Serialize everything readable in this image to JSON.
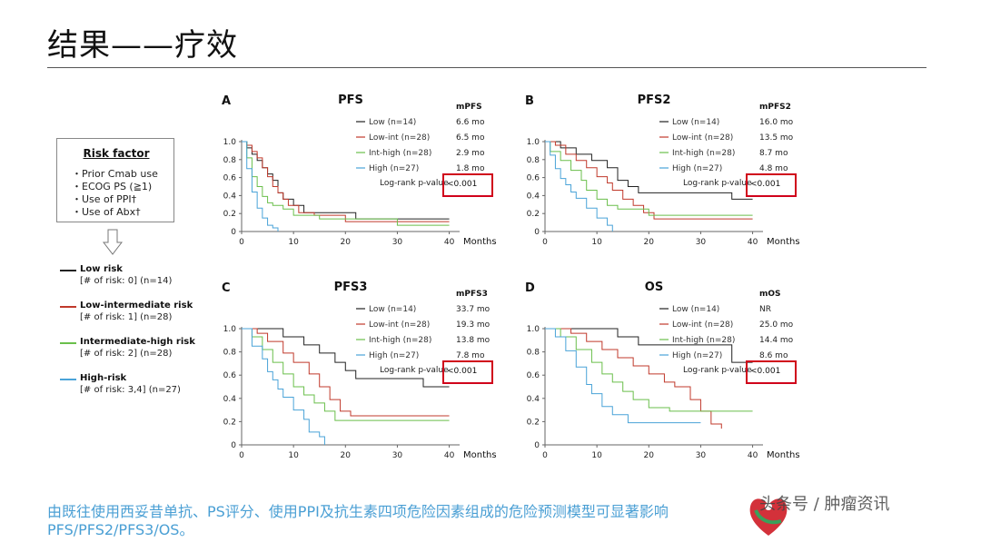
{
  "title": "结果——疗效",
  "risk_factor": {
    "title": "Risk factor",
    "items": [
      "・Prior Cmab use",
      "・ECOG PS (≧1)",
      "・Use of PPI†",
      "・Use of Abx†"
    ]
  },
  "groups": [
    {
      "name": "Low risk",
      "detail": "[# of risk: 0] (n=14)",
      "color": "#222222"
    },
    {
      "name": "Low-intermediate risk",
      "detail": "[# of risk: 1] (n=28)",
      "color": "#c0392b"
    },
    {
      "name": "Intermediate-high risk",
      "detail": "[# of risk: 2] (n=28)",
      "color": "#6abf4b"
    },
    {
      "name": "High-risk",
      "detail": "[# of risk: 3,4] (n=27)",
      "color": "#4aa3d8"
    }
  ],
  "footer": "由既往使用西妥昔单抗、PS评分、使用PPI及抗生素四项危险因素组成的危险预测模型可显著影响PFS/PFS2/PFS3/OS。",
  "watermark": "头条号 / 肿瘤资讯",
  "chart_data": [
    {
      "type": "line",
      "panel": "A",
      "title": "PFS",
      "xlabel": "Months",
      "ylabel": "",
      "xlim": [
        0,
        42
      ],
      "ylim": [
        0,
        1.0
      ],
      "xticks": [
        0,
        10,
        20,
        30,
        40
      ],
      "yticks": [
        "0",
        "0.2",
        "0.4",
        "0.6",
        "0.8",
        "1.0"
      ],
      "median_header": "mPFS",
      "logrank": "Log-rank p-value",
      "pvalue": "<0.001",
      "series": [
        {
          "name": "Low (n=14)",
          "median": "6.6 mo",
          "color": "#222222",
          "points": [
            [
              0,
              1.0
            ],
            [
              1,
              0.93
            ],
            [
              2,
              0.86
            ],
            [
              3,
              0.79
            ],
            [
              4,
              0.71
            ],
            [
              5,
              0.64
            ],
            [
              6,
              0.57
            ],
            [
              7,
              0.43
            ],
            [
              8,
              0.36
            ],
            [
              10,
              0.29
            ],
            [
              12,
              0.21
            ],
            [
              14,
              0.21
            ],
            [
              22,
              0.14
            ],
            [
              40,
              0.14
            ]
          ]
        },
        {
          "name": "Low-int (n=28)",
          "median": "6.5 mo",
          "color": "#c0392b",
          "points": [
            [
              0,
              1.0
            ],
            [
              1,
              0.96
            ],
            [
              2,
              0.89
            ],
            [
              3,
              0.82
            ],
            [
              4,
              0.71
            ],
            [
              5,
              0.61
            ],
            [
              6,
              0.5
            ],
            [
              7,
              0.43
            ],
            [
              8,
              0.36
            ],
            [
              9,
              0.29
            ],
            [
              11,
              0.21
            ],
            [
              14,
              0.18
            ],
            [
              20,
              0.11
            ],
            [
              40,
              0.11
            ]
          ]
        },
        {
          "name": "Int-high (n=28)",
          "median": "2.9 mo",
          "color": "#6abf4b",
          "points": [
            [
              0,
              1.0
            ],
            [
              1,
              0.82
            ],
            [
              2,
              0.61
            ],
            [
              3,
              0.5
            ],
            [
              4,
              0.39
            ],
            [
              5,
              0.32
            ],
            [
              6,
              0.29
            ],
            [
              8,
              0.25
            ],
            [
              10,
              0.18
            ],
            [
              15,
              0.14
            ],
            [
              30,
              0.07
            ],
            [
              40,
              0.07
            ]
          ]
        },
        {
          "name": "High (n=27)",
          "median": "1.8 mo",
          "color": "#4aa3d8",
          "points": [
            [
              0,
              1.0
            ],
            [
              1,
              0.7
            ],
            [
              2,
              0.44
            ],
            [
              3,
              0.26
            ],
            [
              4,
              0.15
            ],
            [
              5,
              0.07
            ],
            [
              6,
              0.04
            ],
            [
              7,
              0.0
            ]
          ]
        }
      ]
    },
    {
      "type": "line",
      "panel": "B",
      "title": "PFS2",
      "xlabel": "Months",
      "ylabel": "",
      "xlim": [
        0,
        42
      ],
      "ylim": [
        0,
        1.0
      ],
      "xticks": [
        0,
        10,
        20,
        30,
        40
      ],
      "yticks": [
        "0",
        "0.2",
        "0.4",
        "0.6",
        "0.8",
        "1.0"
      ],
      "median_header": "mPFS2",
      "logrank": "Log-rank p-value",
      "pvalue": "<0.001",
      "series": [
        {
          "name": "Low (n=14)",
          "median": "16.0 mo",
          "color": "#222222",
          "points": [
            [
              0,
              1.0
            ],
            [
              3,
              0.93
            ],
            [
              6,
              0.86
            ],
            [
              9,
              0.79
            ],
            [
              12,
              0.71
            ],
            [
              14,
              0.57
            ],
            [
              16,
              0.5
            ],
            [
              18,
              0.43
            ],
            [
              34,
              0.43
            ],
            [
              36,
              0.36
            ],
            [
              40,
              0.36
            ]
          ]
        },
        {
          "name": "Low-int (n=28)",
          "median": "13.5 mo",
          "color": "#c0392b",
          "points": [
            [
              0,
              1.0
            ],
            [
              2,
              0.96
            ],
            [
              4,
              0.86
            ],
            [
              6,
              0.79
            ],
            [
              8,
              0.71
            ],
            [
              10,
              0.61
            ],
            [
              12,
              0.54
            ],
            [
              13,
              0.46
            ],
            [
              15,
              0.36
            ],
            [
              17,
              0.29
            ],
            [
              19,
              0.21
            ],
            [
              21,
              0.14
            ],
            [
              40,
              0.14
            ]
          ]
        },
        {
          "name": "Int-high (n=28)",
          "median": "8.7 mo",
          "color": "#6abf4b",
          "points": [
            [
              0,
              1.0
            ],
            [
              1,
              0.89
            ],
            [
              3,
              0.79
            ],
            [
              5,
              0.68
            ],
            [
              7,
              0.57
            ],
            [
              8,
              0.46
            ],
            [
              10,
              0.36
            ],
            [
              12,
              0.29
            ],
            [
              14,
              0.25
            ],
            [
              20,
              0.18
            ],
            [
              40,
              0.18
            ]
          ]
        },
        {
          "name": "High (n=27)",
          "median": "4.8 mo",
          "color": "#4aa3d8",
          "points": [
            [
              0,
              1.0
            ],
            [
              1,
              0.85
            ],
            [
              2,
              0.7
            ],
            [
              3,
              0.59
            ],
            [
              4,
              0.52
            ],
            [
              5,
              0.44
            ],
            [
              6,
              0.37
            ],
            [
              8,
              0.26
            ],
            [
              10,
              0.15
            ],
            [
              12,
              0.07
            ],
            [
              13,
              0.0
            ]
          ]
        }
      ]
    },
    {
      "type": "line",
      "panel": "C",
      "title": "PFS3",
      "xlabel": "Months",
      "ylabel": "",
      "xlim": [
        0,
        42
      ],
      "ylim": [
        0,
        1.0
      ],
      "xticks": [
        0,
        10,
        20,
        30,
        40
      ],
      "yticks": [
        "0",
        "0.2",
        "0.4",
        "0.6",
        "0.8",
        "1.0"
      ],
      "median_header": "mPFS3",
      "logrank": "Log-rank p-value",
      "pvalue": "<0.001",
      "series": [
        {
          "name": "Low (n=14)",
          "median": "33.7 mo",
          "color": "#222222",
          "points": [
            [
              0,
              1.0
            ],
            [
              6,
              1.0
            ],
            [
              8,
              0.93
            ],
            [
              12,
              0.86
            ],
            [
              15,
              0.79
            ],
            [
              18,
              0.71
            ],
            [
              20,
              0.64
            ],
            [
              22,
              0.57
            ],
            [
              34,
              0.57
            ],
            [
              35,
              0.5
            ],
            [
              40,
              0.5
            ]
          ]
        },
        {
          "name": "Low-int (n=28)",
          "median": "19.3 mo",
          "color": "#c0392b",
          "points": [
            [
              0,
              1.0
            ],
            [
              3,
              0.96
            ],
            [
              5,
              0.89
            ],
            [
              8,
              0.79
            ],
            [
              10,
              0.71
            ],
            [
              13,
              0.61
            ],
            [
              15,
              0.5
            ],
            [
              17,
              0.39
            ],
            [
              19,
              0.29
            ],
            [
              21,
              0.25
            ],
            [
              40,
              0.25
            ]
          ]
        },
        {
          "name": "Int-high (n=28)",
          "median": "13.8 mo",
          "color": "#6abf4b",
          "points": [
            [
              0,
              1.0
            ],
            [
              2,
              0.93
            ],
            [
              4,
              0.82
            ],
            [
              6,
              0.71
            ],
            [
              8,
              0.61
            ],
            [
              10,
              0.5
            ],
            [
              12,
              0.43
            ],
            [
              14,
              0.36
            ],
            [
              16,
              0.29
            ],
            [
              18,
              0.21
            ],
            [
              40,
              0.21
            ]
          ]
        },
        {
          "name": "High (n=27)",
          "median": "7.8 mo",
          "color": "#4aa3d8",
          "points": [
            [
              0,
              1.0
            ],
            [
              2,
              0.85
            ],
            [
              4,
              0.74
            ],
            [
              5,
              0.63
            ],
            [
              6,
              0.56
            ],
            [
              7,
              0.48
            ],
            [
              8,
              0.41
            ],
            [
              10,
              0.3
            ],
            [
              12,
              0.22
            ],
            [
              13,
              0.11
            ],
            [
              15,
              0.07
            ],
            [
              16,
              0.0
            ]
          ]
        }
      ]
    },
    {
      "type": "line",
      "panel": "D",
      "title": "OS",
      "xlabel": "Months",
      "ylabel": "",
      "xlim": [
        0,
        42
      ],
      "ylim": [
        0,
        1.0
      ],
      "xticks": [
        0,
        10,
        20,
        30,
        40
      ],
      "yticks": [
        "0",
        "0.2",
        "0.4",
        "0.6",
        "0.8",
        "1.0"
      ],
      "median_header": "mOS",
      "logrank": "Log-rank p-value",
      "pvalue": "<0.001",
      "series": [
        {
          "name": "Low (n=14)",
          "median": "NR",
          "color": "#222222",
          "points": [
            [
              0,
              1.0
            ],
            [
              10,
              1.0
            ],
            [
              14,
              0.93
            ],
            [
              18,
              0.86
            ],
            [
              35,
              0.86
            ],
            [
              36,
              0.71
            ],
            [
              40,
              0.71
            ]
          ]
        },
        {
          "name": "Low-int (n=28)",
          "median": "25.0 mo",
          "color": "#c0392b",
          "points": [
            [
              0,
              1.0
            ],
            [
              5,
              0.96
            ],
            [
              8,
              0.89
            ],
            [
              11,
              0.82
            ],
            [
              14,
              0.75
            ],
            [
              17,
              0.68
            ],
            [
              20,
              0.61
            ],
            [
              23,
              0.54
            ],
            [
              25,
              0.5
            ],
            [
              28,
              0.39
            ],
            [
              30,
              0.29
            ],
            [
              32,
              0.18
            ],
            [
              34,
              0.14
            ]
          ]
        },
        {
          "name": "Int-high (n=28)",
          "median": "14.4 mo",
          "color": "#6abf4b",
          "points": [
            [
              0,
              1.0
            ],
            [
              3,
              0.93
            ],
            [
              6,
              0.82
            ],
            [
              9,
              0.71
            ],
            [
              11,
              0.61
            ],
            [
              13,
              0.54
            ],
            [
              15,
              0.46
            ],
            [
              17,
              0.39
            ],
            [
              20,
              0.32
            ],
            [
              24,
              0.29
            ],
            [
              40,
              0.29
            ]
          ]
        },
        {
          "name": "High (n=27)",
          "median": "8.6 mo",
          "color": "#4aa3d8",
          "points": [
            [
              0,
              1.0
            ],
            [
              2,
              0.93
            ],
            [
              4,
              0.81
            ],
            [
              6,
              0.67
            ],
            [
              8,
              0.52
            ],
            [
              9,
              0.44
            ],
            [
              11,
              0.33
            ],
            [
              13,
              0.26
            ],
            [
              16,
              0.19
            ],
            [
              30,
              0.19
            ]
          ]
        }
      ]
    }
  ]
}
